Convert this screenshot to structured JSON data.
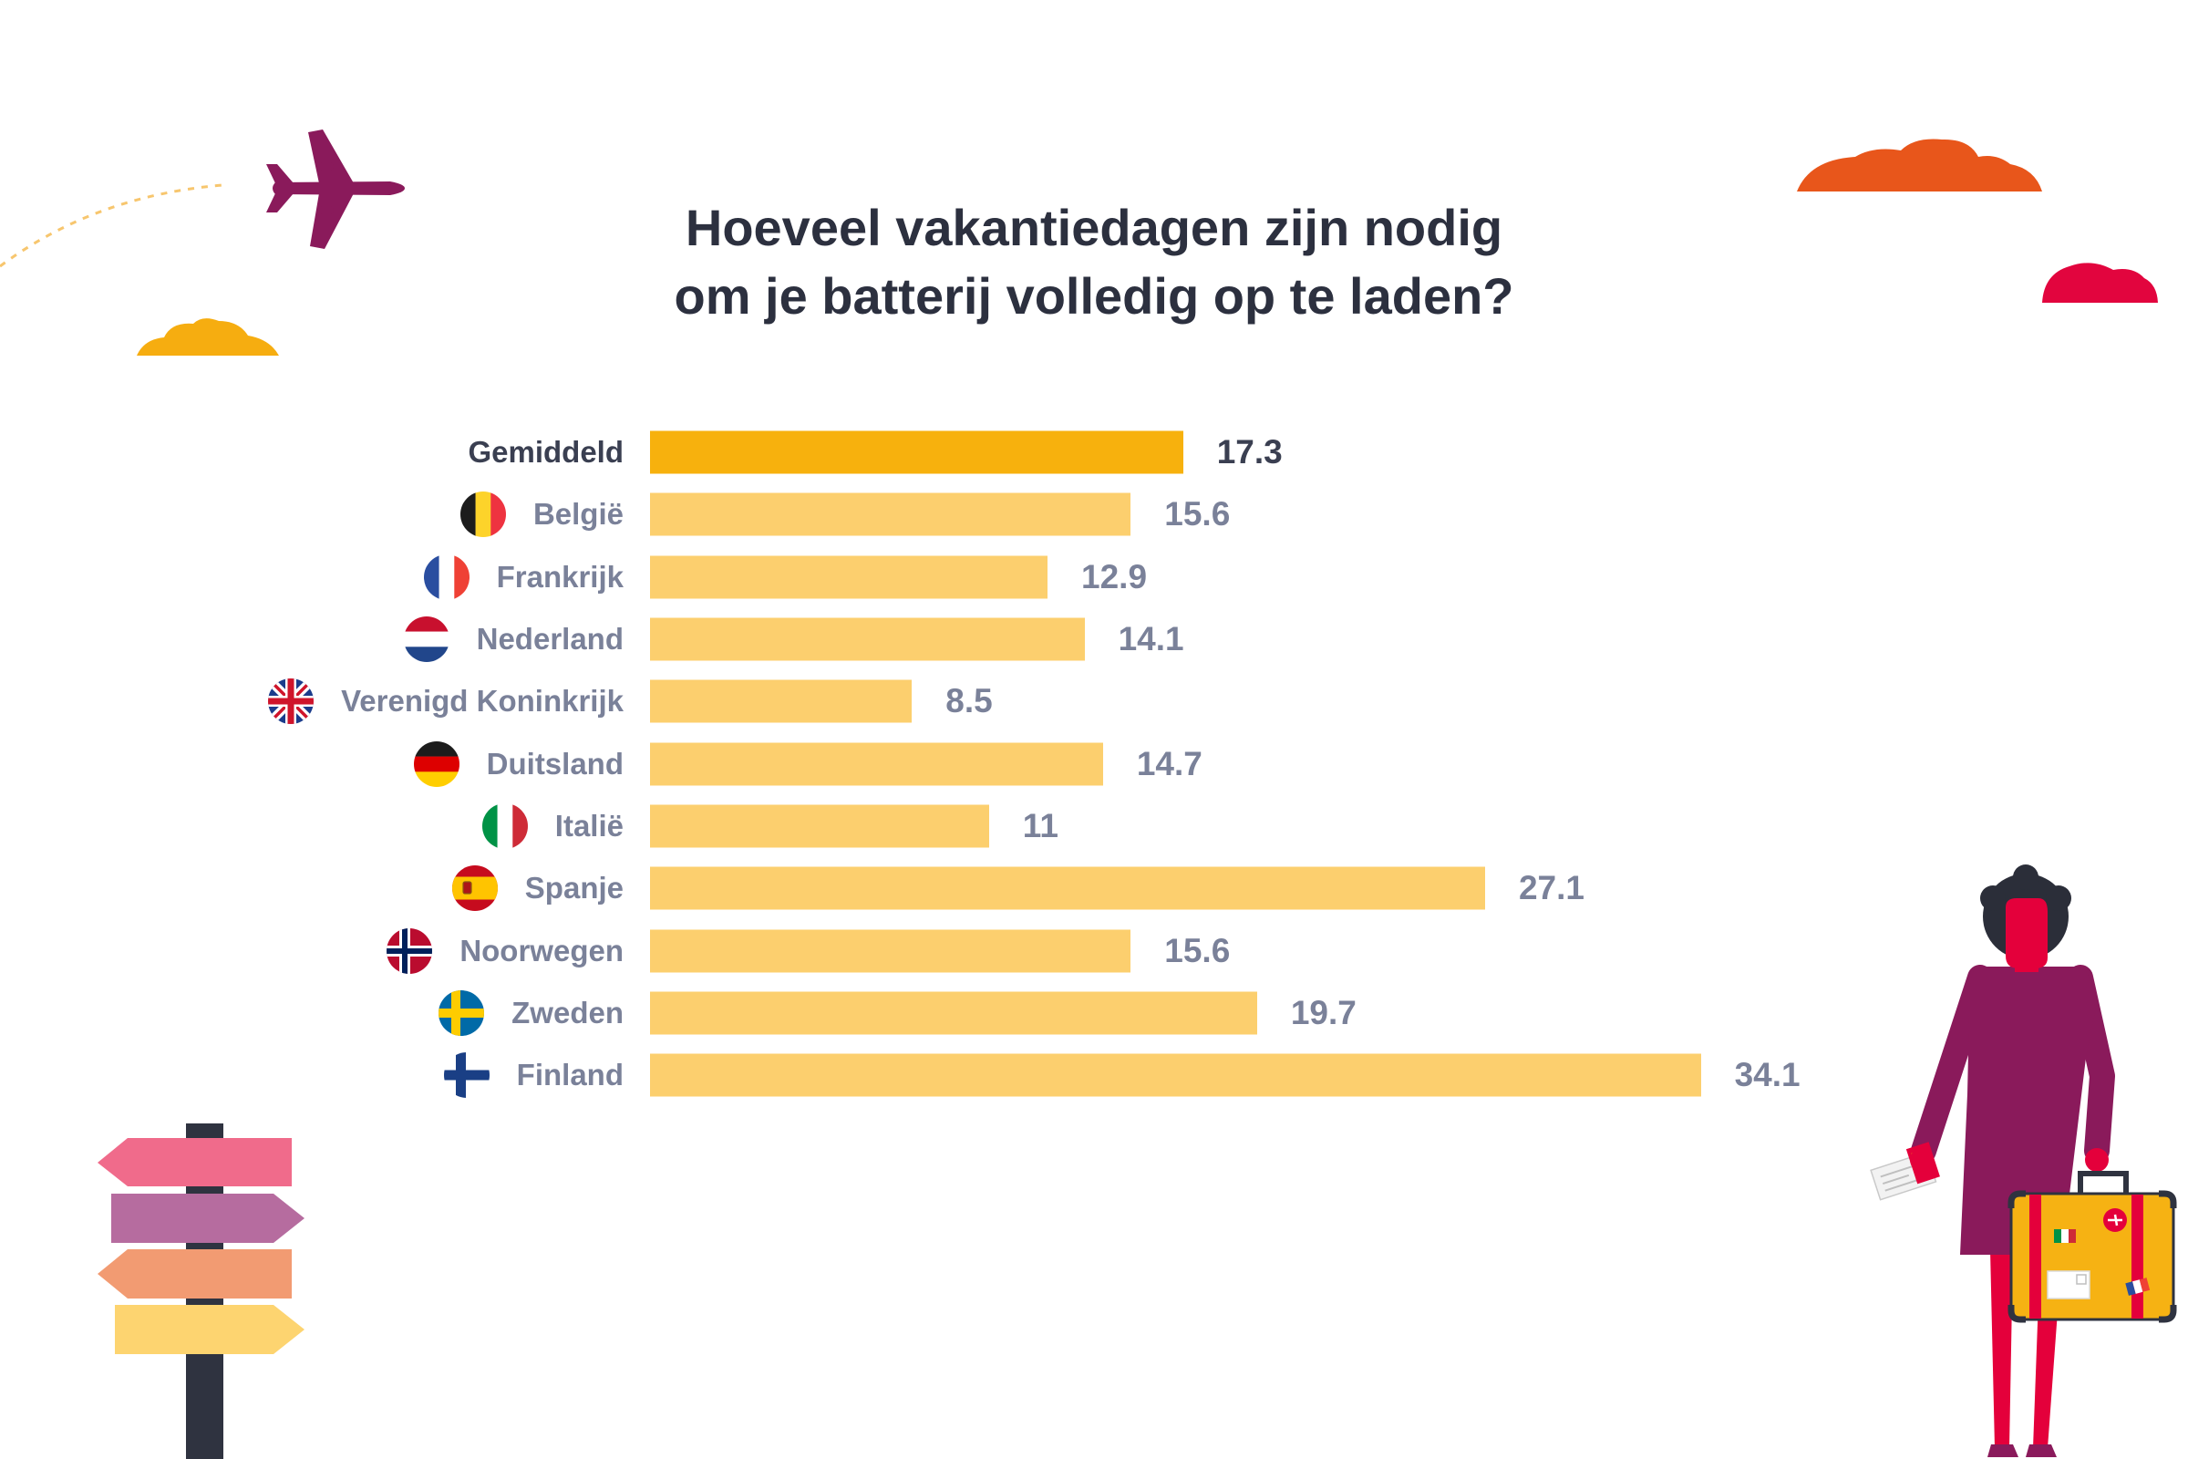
{
  "chart_data": {
    "type": "bar",
    "orientation": "horizontal",
    "title": [
      "Hoeveel vakantiedagen zijn nodig",
      "om je batterij volledig op te laden?"
    ],
    "categories": [
      "Gemiddeld",
      "België",
      "Frankrijk",
      "Nederland",
      "Verenigd Koninkrijk",
      "Duitsland",
      "Italië",
      "Spanje",
      "Noorwegen",
      "Zweden",
      "Finland"
    ],
    "values": [
      17.3,
      15.6,
      12.9,
      14.1,
      8.5,
      14.7,
      11,
      27.1,
      15.6,
      19.7,
      34.1
    ],
    "flags": [
      null,
      "belgium-flag-icon",
      "france-flag-icon",
      "netherlands-flag-icon",
      "uk-flag-icon",
      "germany-flag-icon",
      "italy-flag-icon",
      "spain-flag-icon",
      "norway-flag-icon",
      "sweden-flag-icon",
      "finland-flag-icon"
    ],
    "highlight_index": 0,
    "data_labels": true,
    "grid": false,
    "axes_visible": false,
    "colors": {
      "highlight_bar": "#f7b10d",
      "bar": "#fccf6e",
      "highlight_text": "#3a3f51",
      "label_text": "#7a8199"
    }
  },
  "illustrations": [
    "airplane-icon",
    "cloud-icon",
    "signpost-icon",
    "traveler-icon",
    "suitcase-icon"
  ]
}
